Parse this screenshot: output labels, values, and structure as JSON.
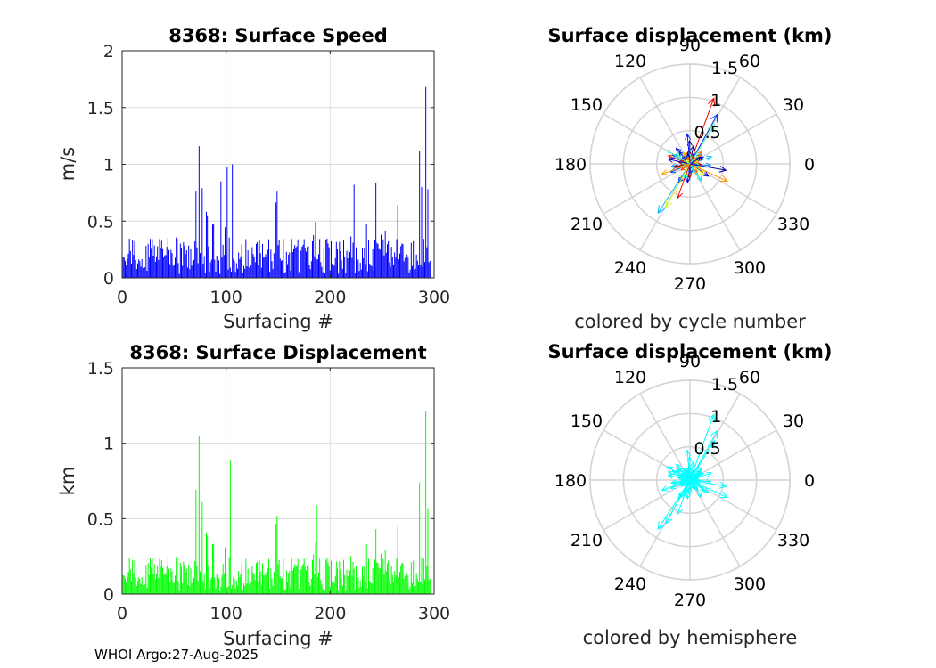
{
  "chart_data": [
    {
      "type": "bar",
      "title": "8368: Surface Speed",
      "xlabel": "Surfacing #",
      "ylabel": "m/s",
      "xlim": [
        0,
        300
      ],
      "ylim": [
        0,
        2
      ],
      "xticks": [
        "0",
        "100",
        "200",
        "300"
      ],
      "yticks": [
        "0",
        "0.5",
        "1",
        "1.5",
        "2"
      ],
      "color": "#0000ff",
      "seed": 8368,
      "n": 296,
      "peaks": [
        [
          73,
          1.16
        ],
        [
          100,
          0.98
        ],
        [
          105,
          1.0
        ],
        [
          70,
          0.76
        ],
        [
          76,
          0.79
        ],
        [
          285,
          1.12
        ],
        [
          291,
          1.68
        ],
        [
          293,
          0.78
        ],
        [
          243,
          0.84
        ],
        [
          222,
          0.82
        ],
        [
          148,
          0.76
        ],
        [
          94,
          0.85
        ],
        [
          287,
          0.8
        ]
      ]
    },
    {
      "type": "bar",
      "title": "8368: Surface Displacement",
      "xlabel": "Surfacing #",
      "ylabel": "km",
      "xlim": [
        0,
        300
      ],
      "ylim": [
        0,
        1.5
      ],
      "xticks": [
        "0",
        "100",
        "200",
        "300"
      ],
      "yticks": [
        "0",
        "0.5",
        "1",
        "1.5"
      ],
      "color": "#00ff00",
      "seed": 8368,
      "n": 296,
      "peaks": [
        [
          73,
          1.05
        ],
        [
          103,
          0.89
        ],
        [
          70,
          0.69
        ],
        [
          76,
          0.61
        ],
        [
          285,
          0.74
        ],
        [
          291,
          1.21
        ],
        [
          293,
          0.57
        ],
        [
          186,
          0.59
        ],
        [
          243,
          0.43
        ],
        [
          148,
          0.52
        ]
      ]
    },
    {
      "type": "polar-quiver",
      "title": "Surface displacement (km)",
      "subtitle": "colored by cycle number",
      "rlim": [
        0,
        1.5
      ],
      "rticks": [
        "0.5",
        "1",
        "1.5"
      ],
      "angle_ticks": [
        "0",
        "30",
        "60",
        "90",
        "120",
        "150",
        "180",
        "210",
        "240",
        "270",
        "300",
        "330"
      ],
      "colormap": "jet",
      "seed": 41,
      "count": 120,
      "long_vectors": [
        [
          70,
          1.05
        ],
        [
          61,
          0.85
        ],
        [
          58,
          0.7
        ],
        [
          -25,
          0.62
        ],
        [
          -10,
          0.55
        ],
        [
          237,
          0.88
        ],
        [
          241,
          0.75
        ],
        [
          250,
          0.55
        ],
        [
          95,
          0.45
        ],
        [
          150,
          0.4
        ],
        [
          200,
          0.45
        ]
      ]
    },
    {
      "type": "polar-quiver",
      "title": "Surface displacement (km)",
      "subtitle": "colored by hemisphere",
      "rlim": [
        0,
        1.5
      ],
      "rticks": [
        "0.5",
        "1",
        "1.5"
      ],
      "angle_ticks": [
        "0",
        "30",
        "60",
        "90",
        "120",
        "150",
        "180",
        "210",
        "240",
        "270",
        "300",
        "330"
      ],
      "color": "#00ffff",
      "seed": 41,
      "count": 120,
      "long_vectors": [
        [
          70,
          1.05
        ],
        [
          61,
          0.85
        ],
        [
          58,
          0.7
        ],
        [
          -25,
          0.62
        ],
        [
          -10,
          0.55
        ],
        [
          237,
          0.88
        ],
        [
          241,
          0.75
        ],
        [
          250,
          0.55
        ],
        [
          95,
          0.45
        ],
        [
          150,
          0.4
        ],
        [
          200,
          0.45
        ]
      ]
    }
  ],
  "footer": "WHOI Argo:27-Aug-2025"
}
